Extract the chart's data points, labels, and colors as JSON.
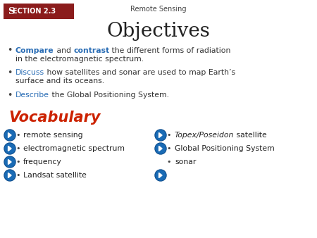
{
  "background_color": "#ffffff",
  "section_label": "Sᴇᴄᴛɯɴ 2.3",
  "section_label_display": "SECTION 2.3",
  "section_bg": "#8B1C1C",
  "section_text_color": "#ffffff",
  "top_label": "Remote Sensing",
  "top_label_color": "#444444",
  "title": "Objectives",
  "title_color": "#222222",
  "objectives": [
    {
      "parts": [
        {
          "text": "Compare",
          "color": "#2a6db5",
          "bold": true
        },
        {
          "text": " and ",
          "color": "#333333",
          "bold": false
        },
        {
          "text": "contrast",
          "color": "#2a6db5",
          "bold": true
        },
        {
          "text": " the different forms of radiation\nin the electromagnetic spectrum.",
          "color": "#333333",
          "bold": false
        }
      ]
    },
    {
      "parts": [
        {
          "text": "Discuss",
          "color": "#2a6db5",
          "bold": false
        },
        {
          "text": " how satellites and sonar are used to map Earth’s\nsurface and its oceans.",
          "color": "#333333",
          "bold": false
        }
      ]
    },
    {
      "parts": [
        {
          "text": "Describe",
          "color": "#2a6db5",
          "bold": false
        },
        {
          "text": " the Global Positioning System.",
          "color": "#333333",
          "bold": false
        }
      ]
    }
  ],
  "vocab_title": "Vocabulary",
  "vocab_title_color": "#cc2200",
  "vocab_left": [
    "remote sensing",
    "electromagnetic spectrum",
    "frequency",
    "Landsat satellite"
  ],
  "vocab_right": [
    {
      "italic_text": "Topex/Poseidon",
      "plain_text": " satellite",
      "has_icon": true
    },
    {
      "italic_text": "",
      "plain_text": "Global Positioning System",
      "has_icon": true
    },
    {
      "italic_text": "",
      "plain_text": "sonar",
      "has_icon": false
    }
  ],
  "vocab_left_has_icon": [
    true,
    true,
    true,
    true
  ],
  "icon_color": "#1a6bb5",
  "icon_outline_color": "#0a4a8a",
  "bullet_color": "#444444",
  "obj_bullet_color": "#444444"
}
